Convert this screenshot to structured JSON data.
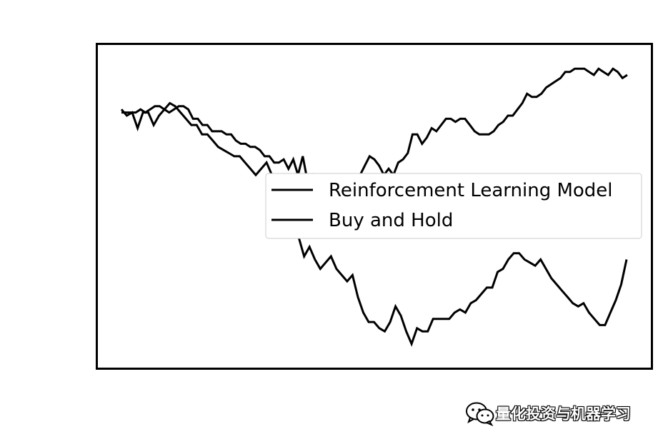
{
  "chart_data": {
    "type": "line",
    "title": "",
    "xlabel": "",
    "ylabel": "",
    "ylim": [
      0,
      1
    ],
    "grid": false,
    "legend_position": "center-right",
    "series": [
      {
        "name": "Reinforcement Learning Model",
        "color": "#000000",
        "values": [
          0.8,
          0.8,
          0.8,
          0.8,
          0.81,
          0.8,
          0.81,
          0.82,
          0.82,
          0.81,
          0.8,
          0.81,
          0.82,
          0.82,
          0.81,
          0.78,
          0.78,
          0.76,
          0.76,
          0.74,
          0.74,
          0.74,
          0.73,
          0.73,
          0.71,
          0.7,
          0.7,
          0.69,
          0.69,
          0.68,
          0.66,
          0.66,
          0.64,
          0.64,
          0.65,
          0.62,
          0.65,
          0.6,
          0.66,
          0.58,
          0.6,
          0.56,
          0.58,
          0.56,
          0.56,
          0.55,
          0.55,
          0.56,
          0.57,
          0.58,
          0.6,
          0.63,
          0.66,
          0.65,
          0.63,
          0.6,
          0.62,
          0.6,
          0.64,
          0.65,
          0.67,
          0.73,
          0.73,
          0.7,
          0.72,
          0.75,
          0.74,
          0.76,
          0.78,
          0.78,
          0.77,
          0.78,
          0.78,
          0.76,
          0.74,
          0.73,
          0.73,
          0.73,
          0.74,
          0.76,
          0.77,
          0.79,
          0.79,
          0.81,
          0.83,
          0.86,
          0.85,
          0.85,
          0.86,
          0.88,
          0.89,
          0.9,
          0.91,
          0.93,
          0.93,
          0.94,
          0.94,
          0.94,
          0.93,
          0.92,
          0.94,
          0.93,
          0.92,
          0.94,
          0.93,
          0.91,
          0.92
        ]
      },
      {
        "name": "Buy and Hold",
        "color": "#000000",
        "values": [
          0.81,
          0.79,
          0.8,
          0.75,
          0.8,
          0.8,
          0.76,
          0.79,
          0.81,
          0.83,
          0.82,
          0.8,
          0.78,
          0.76,
          0.76,
          0.73,
          0.73,
          0.71,
          0.69,
          0.68,
          0.67,
          0.66,
          0.66,
          0.64,
          0.62,
          0.6,
          0.62,
          0.64,
          0.6,
          0.54,
          0.5,
          0.55,
          0.45,
          0.4,
          0.34,
          0.37,
          0.33,
          0.3,
          0.32,
          0.34,
          0.3,
          0.28,
          0.26,
          0.28,
          0.21,
          0.16,
          0.13,
          0.13,
          0.11,
          0.1,
          0.13,
          0.18,
          0.15,
          0.1,
          0.06,
          0.11,
          0.1,
          0.1,
          0.14,
          0.14,
          0.14,
          0.14,
          0.16,
          0.17,
          0.16,
          0.19,
          0.2,
          0.22,
          0.24,
          0.24,
          0.29,
          0.3,
          0.33,
          0.35,
          0.35,
          0.33,
          0.32,
          0.31,
          0.33,
          0.3,
          0.27,
          0.25,
          0.23,
          0.21,
          0.19,
          0.18,
          0.19,
          0.16,
          0.14,
          0.12,
          0.12,
          0.16,
          0.2,
          0.25,
          0.33
        ]
      }
    ]
  },
  "watermark": {
    "text": "量化投资与机器学习",
    "icon": "wechat-icon"
  }
}
